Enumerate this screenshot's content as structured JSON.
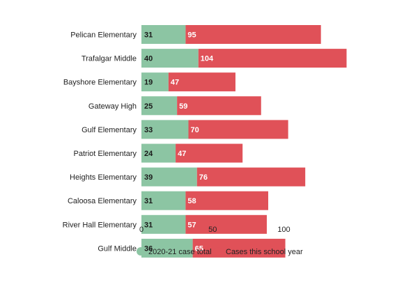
{
  "chart_data": {
    "type": "bar",
    "orientation": "horizontal",
    "stacked": true,
    "title": "",
    "xlabel": "",
    "ylabel": "",
    "categories": [
      "Pelican Elementary",
      "Trafalgar Middle",
      "Bayshore Elementary",
      "Gateway High",
      "Gulf Elementary",
      "Patriot Elementary",
      "Heights Elementary",
      "Caloosa Elementary",
      "River Hall Elementary",
      "Gulf Middle"
    ],
    "series": [
      {
        "name": "2020-21 case total",
        "color": "#8cc5a3",
        "values": [
          31,
          40,
          19,
          25,
          33,
          24,
          39,
          31,
          31,
          36
        ]
      },
      {
        "name": "Cases this school year",
        "color": "#e05158",
        "values": [
          95,
          104,
          47,
          59,
          70,
          47,
          76,
          58,
          57,
          65
        ]
      }
    ],
    "xlim": [
      0,
      150
    ],
    "xticks": [
      0,
      50,
      100
    ],
    "grid": false,
    "legend": "bottom-center"
  }
}
